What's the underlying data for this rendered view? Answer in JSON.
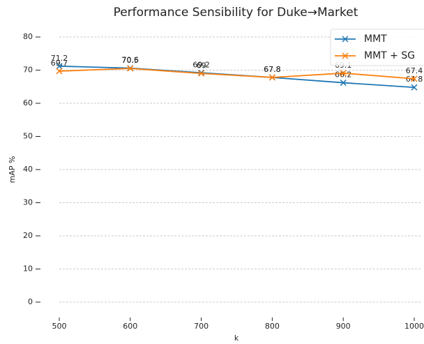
{
  "chart_data": {
    "type": "line",
    "title": "Performance Sensibility for Duke→Market",
    "xlabel": "k",
    "ylabel": "mAP %",
    "x": [
      500,
      600,
      700,
      800,
      900,
      1000
    ],
    "series": [
      {
        "name": "MMT",
        "color": "#1f77b4",
        "values": [
          71.2,
          70.6,
          69.2,
          67.8,
          66.2,
          64.8
        ]
      },
      {
        "name": "MMT + SG",
        "color": "#ff7f0e",
        "values": [
          69.7,
          70.5,
          69.0,
          67.8,
          69.1,
          67.4
        ]
      }
    ],
    "xlim": [
      500,
      1000
    ],
    "xticks": [
      500,
      600,
      700,
      800,
      900,
      1000
    ],
    "ylim": [
      -3.5,
      83.5
    ],
    "yticks": [
      0,
      10,
      20,
      30,
      40,
      50,
      60,
      70,
      80
    ],
    "grid": true,
    "legend": "upper right",
    "marker": "x"
  }
}
